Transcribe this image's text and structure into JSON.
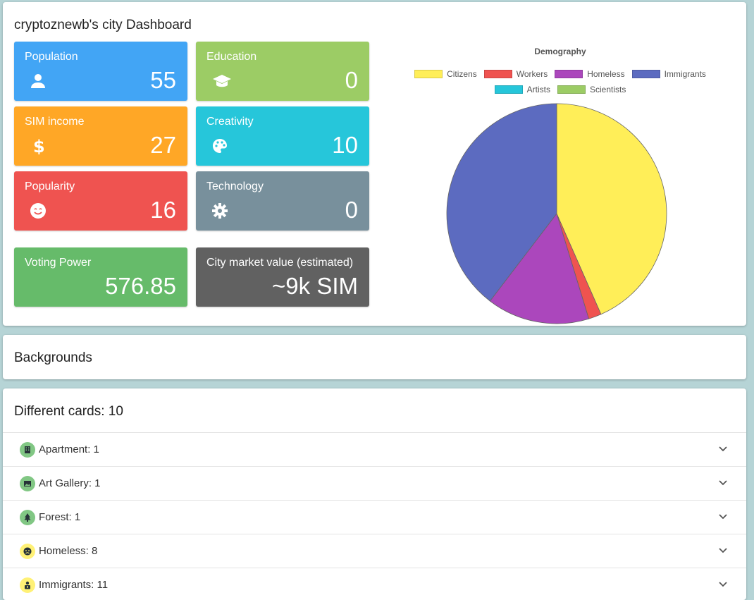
{
  "dashboard": {
    "title": "cryptoznewb's city Dashboard",
    "tiles": {
      "population": {
        "label": "Population",
        "value": "55",
        "color": "#42a5f5",
        "icon": "person-icon"
      },
      "education": {
        "label": "Education",
        "value": "0",
        "color": "#9ccc65",
        "icon": "graduation-cap-icon"
      },
      "sim_income": {
        "label": "SIM income",
        "value": "27",
        "color": "#ffa726",
        "icon": "dollar-icon"
      },
      "creativity": {
        "label": "Creativity",
        "value": "10",
        "color": "#26c6da",
        "icon": "palette-icon"
      },
      "popularity": {
        "label": "Popularity",
        "value": "16",
        "color": "#ef5350",
        "icon": "smiley-icon"
      },
      "technology": {
        "label": "Technology",
        "value": "0",
        "color": "#78909c",
        "icon": "gear-icon"
      },
      "voting_power": {
        "label": "Voting Power",
        "value": "576.85",
        "color": "#66bb6a"
      },
      "market_value": {
        "label": "City market value (estimated)",
        "value": "~9k SIM",
        "color": "#616161"
      }
    }
  },
  "chart_data": {
    "type": "pie",
    "title": "Demography",
    "legend_placement": "top",
    "categories": [
      "Citizens",
      "Workers",
      "Homeless",
      "Immigrants",
      "Artists",
      "Scientists"
    ],
    "values": [
      23,
      1,
      8,
      21,
      0,
      0
    ],
    "colors": [
      "#ffee58",
      "#ef5350",
      "#ab47bc",
      "#5c6bc0",
      "#26c6da",
      "#9ccc65"
    ]
  },
  "backgrounds": {
    "title": "Backgrounds"
  },
  "cards": {
    "title": "Different cards: 10",
    "items": [
      {
        "label": "Apartment: 1",
        "icon": "building-icon",
        "badge_color": "#81c784"
      },
      {
        "label": "Art Gallery: 1",
        "icon": "image-icon",
        "badge_color": "#81c784"
      },
      {
        "label": "Forest: 1",
        "icon": "tree-icon",
        "badge_color": "#81c784"
      },
      {
        "label": "Homeless: 8",
        "icon": "sad-face-icon",
        "badge_color": "#fff176"
      },
      {
        "label": "Immigrants: 11",
        "icon": "person-bag-icon",
        "badge_color": "#fff176"
      }
    ]
  }
}
